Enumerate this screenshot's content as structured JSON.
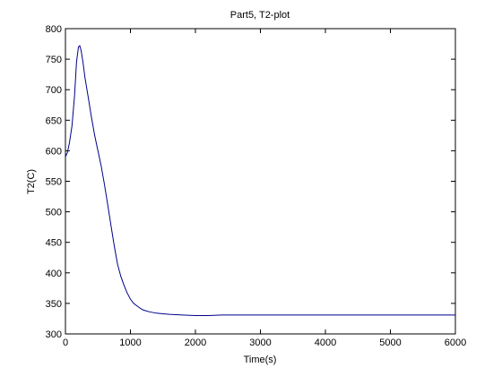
{
  "chart_data": {
    "type": "line",
    "title": "Part5, T2-plot",
    "xlabel": "Time(s)",
    "ylabel": "T2(C)",
    "xlim": [
      0,
      6000
    ],
    "ylim": [
      300,
      800
    ],
    "xticks": [
      0,
      1000,
      2000,
      3000,
      4000,
      5000,
      6000
    ],
    "yticks": [
      300,
      350,
      400,
      450,
      500,
      550,
      600,
      650,
      700,
      750,
      800
    ],
    "grid": false,
    "colors": {
      "line": "#00008b",
      "axes": "#000000",
      "background": "#ffffff"
    },
    "series": [
      {
        "x": [
          0,
          30,
          60,
          100,
          140,
          170,
          200,
          220,
          240,
          270,
          300,
          350,
          400,
          450,
          500,
          550,
          600,
          650,
          700,
          750,
          800,
          850,
          900,
          950,
          1000,
          1050,
          1100,
          1150,
          1200,
          1300,
          1400,
          1500,
          1600,
          1800,
          2000,
          2200,
          2400,
          2600,
          3000,
          4000,
          5000,
          6000
        ],
        "y": [
          590,
          597,
          612,
          640,
          690,
          745,
          770,
          772,
          765,
          745,
          720,
          688,
          655,
          625,
          600,
          575,
          545,
          512,
          478,
          445,
          415,
          395,
          380,
          367,
          357,
          350,
          346,
          342,
          339,
          336,
          334,
          333,
          332,
          331,
          330,
          330,
          331,
          331,
          331,
          331,
          331,
          331
        ]
      }
    ]
  }
}
